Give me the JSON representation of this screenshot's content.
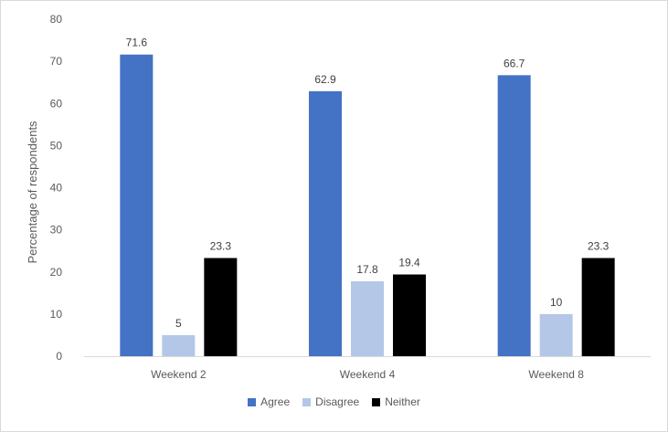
{
  "chart_data": {
    "type": "bar",
    "title": "",
    "xlabel": "",
    "ylabel": "Percentage of respondents",
    "ylim": [
      0,
      80
    ],
    "yticks": [
      0,
      10,
      20,
      30,
      40,
      50,
      60,
      70,
      80
    ],
    "grid": false,
    "legend_position": "bottom",
    "categories": [
      "Weekend 2",
      "Weekend 4",
      "Weekend 8"
    ],
    "series": [
      {
        "name": "Agree",
        "color": "#4472c4",
        "values": [
          71.6,
          62.9,
          66.7
        ]
      },
      {
        "name": "Disagree",
        "color": "#b4c7e7",
        "values": [
          5,
          17.8,
          10
        ]
      },
      {
        "name": "Neither",
        "color": "#000000",
        "values": [
          23.3,
          19.4,
          23.3
        ]
      }
    ],
    "data_labels": [
      [
        "71.6",
        "62.9",
        "66.7"
      ],
      [
        "5",
        "17.8",
        "10"
      ],
      [
        "23.3",
        "19.4",
        "23.3"
      ]
    ]
  }
}
